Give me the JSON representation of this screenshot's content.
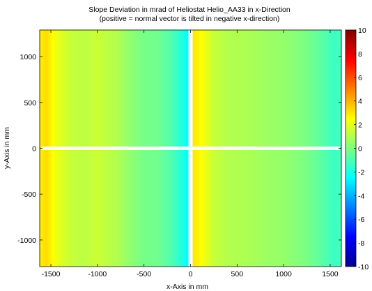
{
  "chart_data": {
    "type": "heatmap",
    "title": "Slope Deviation in mrad of Heliostat Helio_AA33 in x-Direction",
    "subtitle": "(positive = normal vector is tilted in negative x-direction)",
    "xlabel": "x-Axis in mm",
    "ylabel": "y-Axis in mm",
    "xlim": [
      -1620,
      1620
    ],
    "ylim": [
      -1290,
      1290
    ],
    "x_ticks": [
      -1500,
      -1000,
      -500,
      0,
      500,
      1000,
      1500
    ],
    "x_tick_labels": [
      "-1500",
      "-1000",
      "-500",
      "0",
      "500",
      "1000",
      "1500"
    ],
    "y_ticks": [
      -1000,
      -500,
      0,
      500,
      1000
    ],
    "y_tick_labels": [
      "-1000",
      "-500",
      "0",
      "500",
      "1000"
    ],
    "colorbar": {
      "range": [
        -10,
        10
      ],
      "ticks": [
        -10,
        -8,
        -6,
        -4,
        -2,
        0,
        2,
        4,
        6,
        8,
        10
      ],
      "tick_labels": [
        "-10",
        "-8",
        "-6",
        "-4",
        "-2",
        "0",
        "2",
        "4",
        "6",
        "8",
        "10"
      ],
      "colormap": "jet"
    },
    "gaps": {
      "vertical_x_mm": 0,
      "horizontal_y_mm": 0
    },
    "x_profile": {
      "x_mm": [
        -1620,
        -1550,
        -1450,
        -1300,
        -1150,
        -1000,
        -900,
        -800,
        -650,
        -500,
        -350,
        -200,
        -100,
        -20,
        20,
        100,
        250,
        400,
        600,
        800,
        1000,
        1200,
        1400,
        1550,
        1620
      ],
      "value_mrad": [
        2.8,
        3.2,
        2.2,
        1.4,
        1.2,
        1.5,
        1.2,
        1.0,
        0.3,
        -0.2,
        -0.3,
        -1.0,
        -1.8,
        -2.6,
        3.0,
        2.6,
        1.4,
        1.0,
        0.9,
        0.6,
        0.4,
        0.0,
        -0.7,
        -1.4,
        -1.0
      ]
    },
    "grid": false
  },
  "colors": {
    "jet_low": "#00008f",
    "jet_mid": "#7fff7f",
    "jet_high": "#7f0000",
    "gap": "#ffffff",
    "axes": "#000000"
  }
}
